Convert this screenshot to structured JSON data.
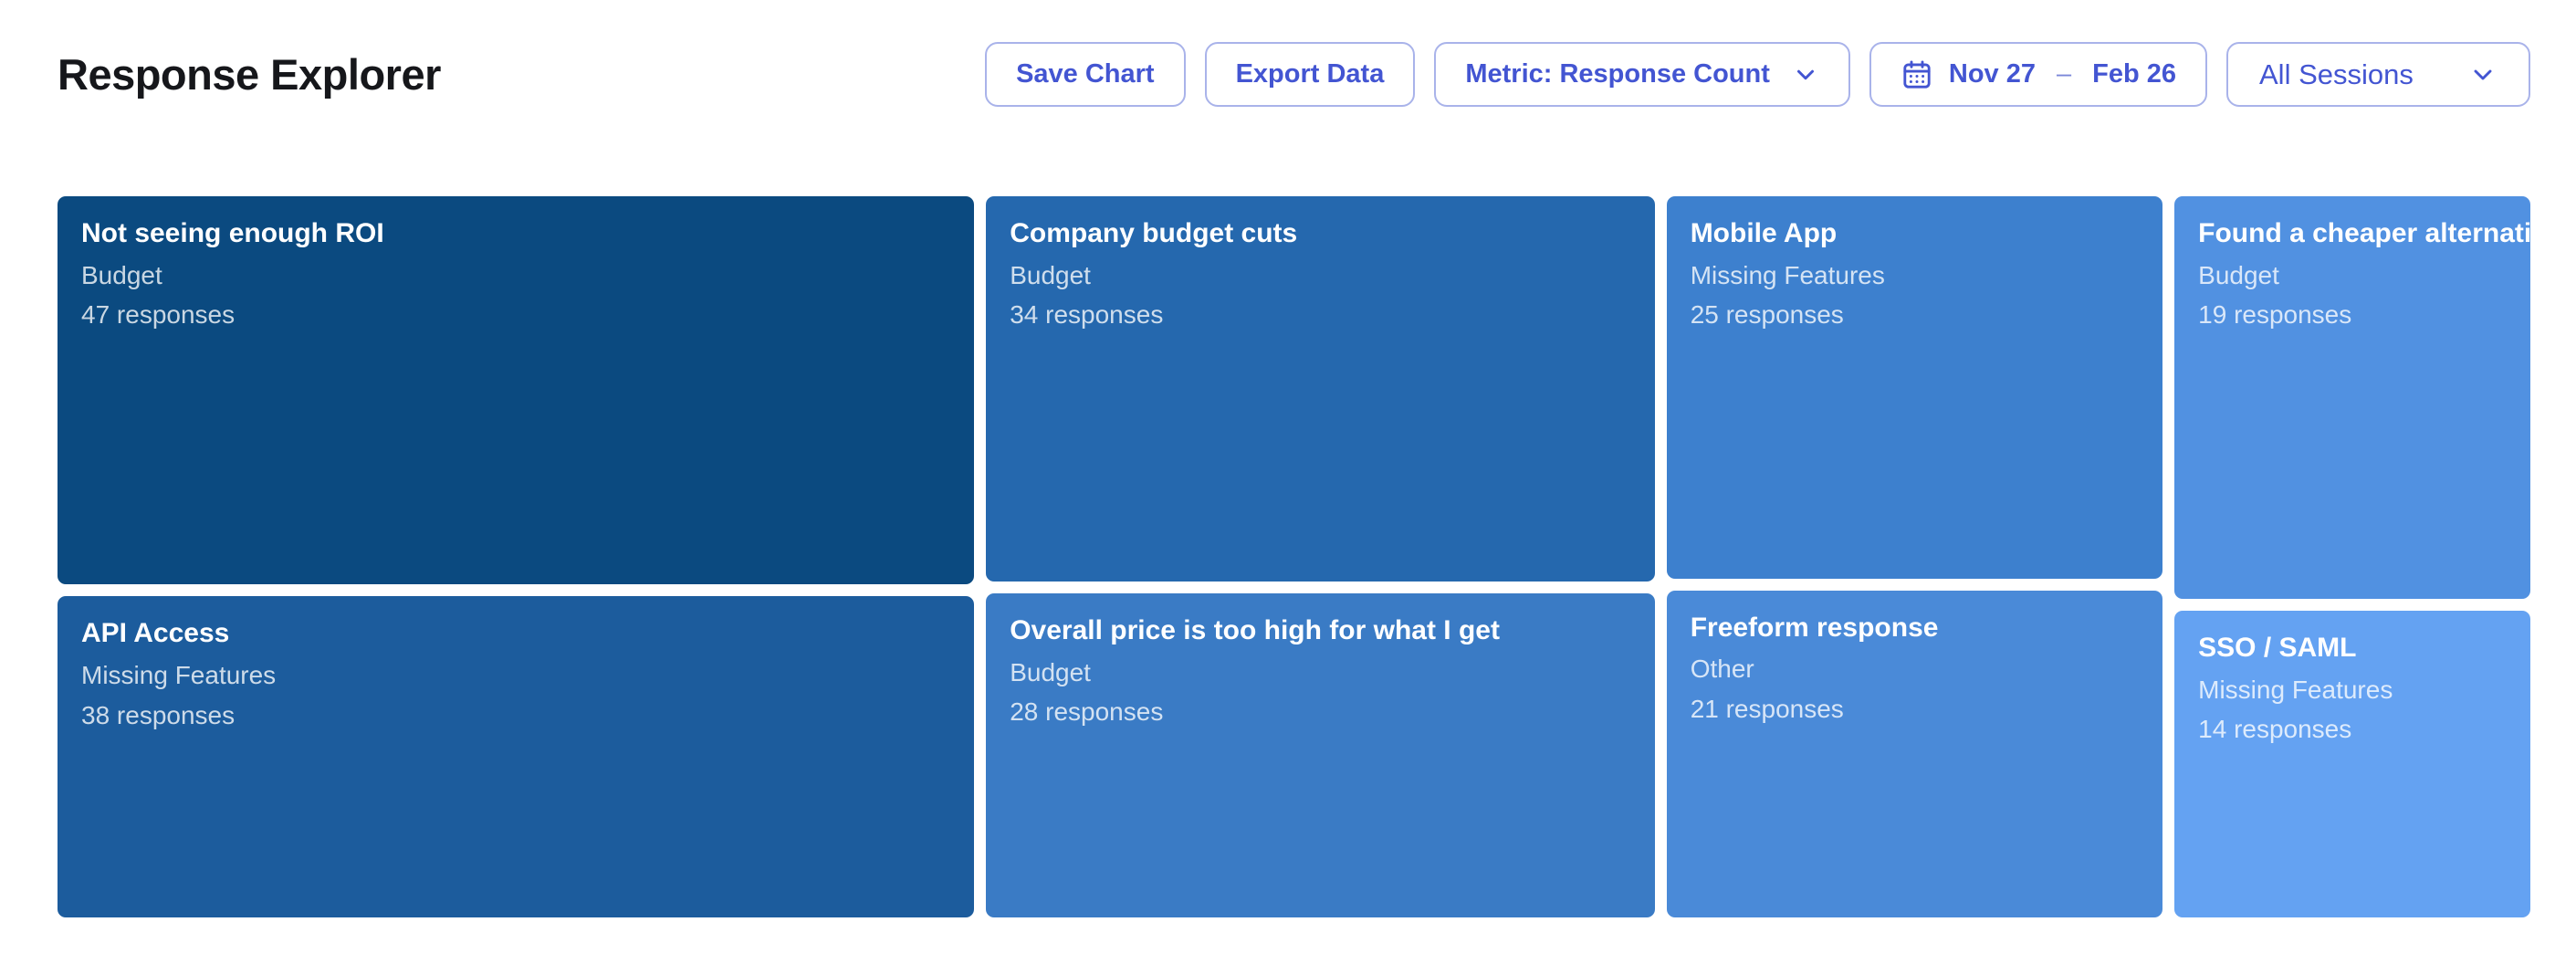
{
  "header": {
    "title": "Response Explorer"
  },
  "toolbar": {
    "save_chart_label": "Save Chart",
    "export_data_label": "Export Data",
    "metric_label": "Metric: Response Count",
    "date_range": {
      "start": "Nov 27",
      "separator": "–",
      "end": "Feb 26"
    },
    "sessions_label": "All Sessions"
  },
  "colors": {
    "accent": "#4355d2",
    "button_border": "#a9b3ea",
    "title_text": "#16171b",
    "tile_text": "#ffffff",
    "tile_subtext": "rgba(255,255,255,0.78)"
  },
  "icons": {
    "calendar": "calendar-icon",
    "chevron": "chevron-down-icon"
  },
  "chart_data": {
    "type": "treemap",
    "title": "Response Explorer",
    "metric": "Response Count",
    "unit_label": "responses",
    "legend_position": "none",
    "items": [
      {
        "label": "Not seeing enough ROI",
        "category": "Budget",
        "count": 47,
        "color": "#0b4a80"
      },
      {
        "label": "API Access",
        "category": "Missing Features",
        "count": 38,
        "color": "#1c5c9d"
      },
      {
        "label": "Company budget cuts",
        "category": "Budget",
        "count": 34,
        "color": "#2568ae"
      },
      {
        "label": "Overall price is too high for what I get",
        "category": "Budget",
        "count": 28,
        "color": "#3a7bc5"
      },
      {
        "label": "Mobile App",
        "category": "Missing Features",
        "count": 25,
        "color": "#3d80ce"
      },
      {
        "label": "Freeform response",
        "category": "Other",
        "count": 21,
        "color": "#4a8ad8"
      },
      {
        "label": "Found a cheaper alternative",
        "category": "Budget",
        "count": 19,
        "color": "#5191e1"
      },
      {
        "label": "SSO / SAML",
        "category": "Missing Features",
        "count": 14,
        "color": "#64a2f2"
      }
    ],
    "layout": {
      "columns": 4,
      "tiles_per_column": 2,
      "order": "descending counts paired into columns, column width proportional to pair sum"
    }
  }
}
